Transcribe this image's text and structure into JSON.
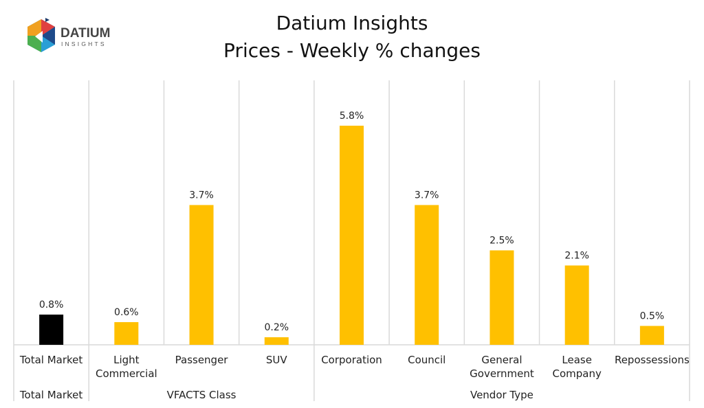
{
  "logo": {
    "name": "DATIUM",
    "tagline": "INSIGHTS"
  },
  "chart_data": {
    "type": "bar",
    "title": "Datium Insights",
    "subtitle": "Prices - Weekly % changes",
    "categories": [
      "Total Market",
      "Light Commercial",
      "Passenger",
      "SUV",
      "Corporation",
      "Council",
      "General Government",
      "Lease Company",
      "Repossessions"
    ],
    "category_lines": [
      [
        "Total Market"
      ],
      [
        "Light",
        "Commercial"
      ],
      [
        "Passenger"
      ],
      [
        "SUV"
      ],
      [
        "Corporation"
      ],
      [
        "Council"
      ],
      [
        "General",
        "Government"
      ],
      [
        "Lease",
        "Company"
      ],
      [
        "Repossessions"
      ]
    ],
    "groups": [
      {
        "label": "",
        "members": [
          "Total Market"
        ]
      },
      {
        "label": "VFACTS Class",
        "members": [
          "Light Commercial",
          "Passenger",
          "SUV"
        ]
      },
      {
        "label": "Vendor Type",
        "members": [
          "Corporation",
          "Council",
          "General Government",
          "Lease Company",
          "Repossessions"
        ]
      }
    ],
    "values": [
      0.8,
      0.6,
      3.7,
      0.2,
      5.8,
      3.7,
      2.5,
      2.1,
      0.5
    ],
    "data_labels": [
      "0.8%",
      "0.6%",
      "3.7%",
      "0.2%",
      "5.8%",
      "3.7%",
      "2.5%",
      "2.1%",
      "0.5%"
    ],
    "colors": [
      "#000000",
      "#FFC000",
      "#FFC000",
      "#FFC000",
      "#FFC000",
      "#FFC000",
      "#FFC000",
      "#FFC000",
      "#FFC000"
    ],
    "ylim": [
      0,
      7
    ],
    "unit": "%",
    "grid": "vertical category separators"
  }
}
